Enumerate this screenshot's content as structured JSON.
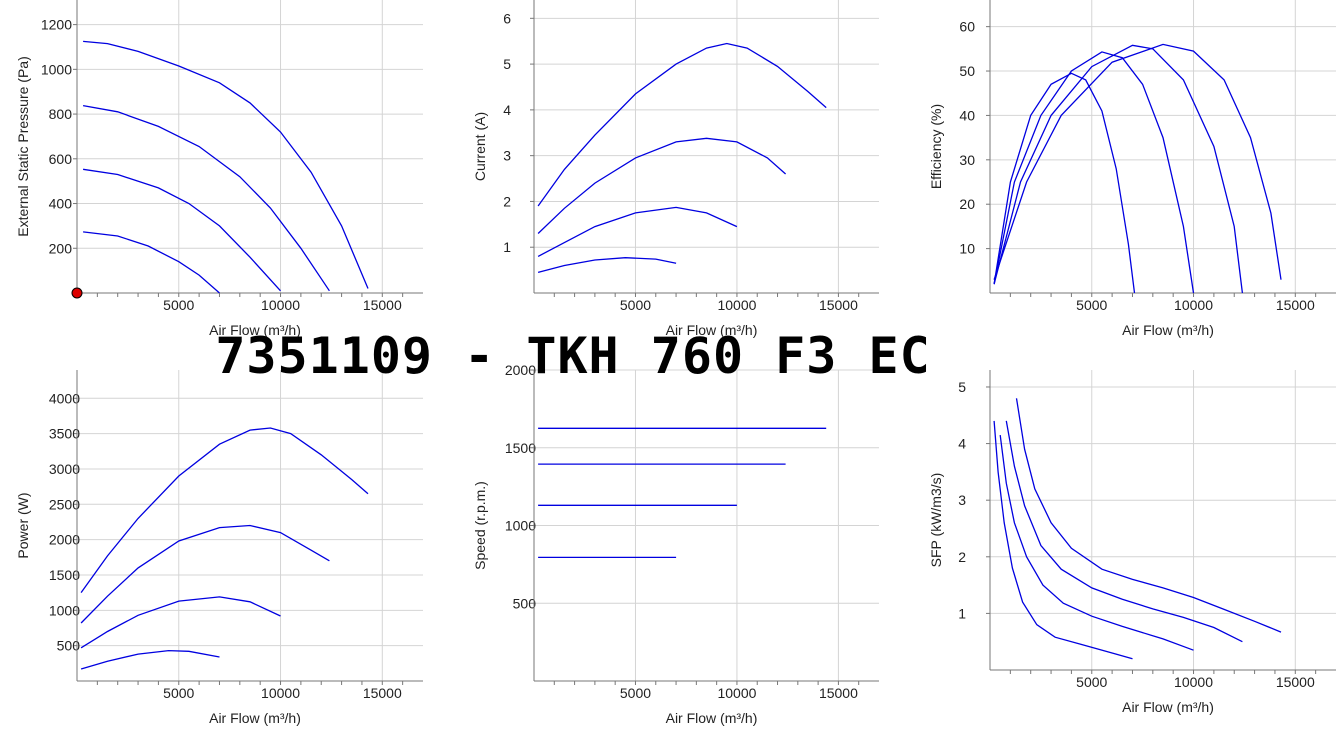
{
  "title": "7351109 - TKH 760 F3 EC",
  "colors": {
    "curve": "#0000e0",
    "grid": "#d4d4d4",
    "marker": "#dd0000"
  },
  "chart_data": [
    {
      "type": "line",
      "xlabel": "Air Flow (m³/h)",
      "ylabel": "External Static Pressure (Pa)",
      "xlim": [
        0,
        17000
      ],
      "ylim": [
        0,
        1310
      ],
      "xticks": [
        5000,
        10000,
        15000
      ],
      "yticks": [
        200,
        400,
        600,
        800,
        1000,
        1200
      ],
      "marker_point": {
        "x": 0,
        "y": 0
      },
      "series": [
        {
          "points": [
            [
              300,
              1125
            ],
            [
              1500,
              1115
            ],
            [
              3000,
              1080
            ],
            [
              5000,
              1015
            ],
            [
              7000,
              940
            ],
            [
              8500,
              850
            ],
            [
              10000,
              720
            ],
            [
              11500,
              540
            ],
            [
              13000,
              300
            ],
            [
              14300,
              20
            ]
          ]
        },
        {
          "points": [
            [
              300,
              838
            ],
            [
              2000,
              810
            ],
            [
              4000,
              745
            ],
            [
              6000,
              655
            ],
            [
              8000,
              520
            ],
            [
              9500,
              380
            ],
            [
              11000,
              200
            ],
            [
              12400,
              10
            ]
          ]
        },
        {
          "points": [
            [
              300,
              553
            ],
            [
              2000,
              530
            ],
            [
              4000,
              470
            ],
            [
              5500,
              400
            ],
            [
              7000,
              300
            ],
            [
              8500,
              160
            ],
            [
              10000,
              10
            ]
          ]
        },
        {
          "points": [
            [
              300,
              273
            ],
            [
              2000,
              255
            ],
            [
              3500,
              210
            ],
            [
              5000,
              140
            ],
            [
              6000,
              80
            ],
            [
              7000,
              0
            ]
          ]
        }
      ]
    },
    {
      "type": "line",
      "xlabel": "Air Flow (m³/h)",
      "ylabel": "Current (A)",
      "xlim": [
        0,
        17000
      ],
      "ylim": [
        0,
        6.4
      ],
      "xticks": [
        5000,
        10000,
        15000
      ],
      "yticks": [
        1,
        2,
        3,
        4,
        5,
        6
      ],
      "series": [
        {
          "points": [
            [
              200,
              1.9
            ],
            [
              1500,
              2.7
            ],
            [
              3000,
              3.45
            ],
            [
              5000,
              4.35
            ],
            [
              7000,
              5.0
            ],
            [
              8500,
              5.35
            ],
            [
              9500,
              5.45
            ],
            [
              10500,
              5.35
            ],
            [
              12000,
              4.95
            ],
            [
              13500,
              4.4
            ],
            [
              14400,
              4.05
            ]
          ]
        },
        {
          "points": [
            [
              200,
              1.3
            ],
            [
              1500,
              1.85
            ],
            [
              3000,
              2.4
            ],
            [
              5000,
              2.95
            ],
            [
              7000,
              3.3
            ],
            [
              8500,
              3.38
            ],
            [
              10000,
              3.3
            ],
            [
              11500,
              2.95
            ],
            [
              12400,
              2.6
            ]
          ]
        },
        {
          "points": [
            [
              200,
              0.8
            ],
            [
              1500,
              1.1
            ],
            [
              3000,
              1.45
            ],
            [
              5000,
              1.75
            ],
            [
              7000,
              1.87
            ],
            [
              8500,
              1.75
            ],
            [
              10000,
              1.45
            ]
          ]
        },
        {
          "points": [
            [
              200,
              0.45
            ],
            [
              1500,
              0.6
            ],
            [
              3000,
              0.72
            ],
            [
              4500,
              0.77
            ],
            [
              6000,
              0.74
            ],
            [
              7000,
              0.65
            ]
          ]
        }
      ]
    },
    {
      "type": "line",
      "xlabel": "Air Flow (m³/h)",
      "ylabel": "Efficiency (%)",
      "xlim": [
        0,
        17000
      ],
      "ylim": [
        0,
        66
      ],
      "xticks": [
        5000,
        10000,
        15000
      ],
      "yticks": [
        10,
        20,
        30,
        40,
        50,
        60
      ],
      "series": [
        {
          "points": [
            [
              200,
              2
            ],
            [
              1000,
              25
            ],
            [
              2000,
              40
            ],
            [
              3000,
              47
            ],
            [
              4000,
              49.5
            ],
            [
              4700,
              48
            ],
            [
              5500,
              41
            ],
            [
              6200,
              28
            ],
            [
              6800,
              11
            ],
            [
              7100,
              0
            ]
          ]
        },
        {
          "points": [
            [
              200,
              2
            ],
            [
              1200,
              25
            ],
            [
              2500,
              40
            ],
            [
              4000,
              50
            ],
            [
              5500,
              54.3
            ],
            [
              6500,
              53
            ],
            [
              7500,
              47
            ],
            [
              8500,
              35
            ],
            [
              9500,
              15
            ],
            [
              10000,
              0
            ]
          ]
        },
        {
          "points": [
            [
              200,
              2
            ],
            [
              1500,
              25
            ],
            [
              3000,
              40
            ],
            [
              5000,
              51
            ],
            [
              7000,
              55.8
            ],
            [
              8000,
              55
            ],
            [
              9500,
              48
            ],
            [
              11000,
              33
            ],
            [
              12000,
              15
            ],
            [
              12400,
              0
            ]
          ]
        },
        {
          "points": [
            [
              200,
              3
            ],
            [
              1800,
              25
            ],
            [
              3500,
              40
            ],
            [
              6000,
              52
            ],
            [
              8500,
              56
            ],
            [
              10000,
              54.5
            ],
            [
              11500,
              48
            ],
            [
              12800,
              35
            ],
            [
              13800,
              18
            ],
            [
              14300,
              3
            ]
          ]
        }
      ]
    },
    {
      "type": "line",
      "xlabel": "Air Flow (m³/h)",
      "ylabel": "Power (W)",
      "xlim": [
        0,
        17000
      ],
      "ylim": [
        0,
        4400
      ],
      "xticks": [
        5000,
        10000,
        15000
      ],
      "yticks": [
        500,
        1000,
        1500,
        2000,
        2500,
        3000,
        3500,
        4000
      ],
      "series": [
        {
          "points": [
            [
              200,
              1250
            ],
            [
              1500,
              1770
            ],
            [
              3000,
              2300
            ],
            [
              5000,
              2900
            ],
            [
              7000,
              3350
            ],
            [
              8500,
              3550
            ],
            [
              9500,
              3580
            ],
            [
              10500,
              3500
            ],
            [
              12000,
              3200
            ],
            [
              13500,
              2850
            ],
            [
              14300,
              2650
            ]
          ]
        },
        {
          "points": [
            [
              200,
              820
            ],
            [
              1500,
              1200
            ],
            [
              3000,
              1600
            ],
            [
              5000,
              1980
            ],
            [
              7000,
              2170
            ],
            [
              8500,
              2200
            ],
            [
              10000,
              2100
            ],
            [
              11500,
              1850
            ],
            [
              12400,
              1700
            ]
          ]
        },
        {
          "points": [
            [
              200,
              470
            ],
            [
              1500,
              700
            ],
            [
              3000,
              930
            ],
            [
              5000,
              1130
            ],
            [
              7000,
              1190
            ],
            [
              8500,
              1120
            ],
            [
              10000,
              920
            ]
          ]
        },
        {
          "points": [
            [
              200,
              170
            ],
            [
              1500,
              280
            ],
            [
              3000,
              380
            ],
            [
              4500,
              430
            ],
            [
              5500,
              420
            ],
            [
              7000,
              340
            ]
          ]
        }
      ]
    },
    {
      "type": "line",
      "xlabel": "Air Flow (m³/h)",
      "ylabel": "Speed (r.p.m.)",
      "xlim": [
        0,
        17000
      ],
      "ylim": [
        0,
        2000
      ],
      "xticks": [
        5000,
        10000,
        15000
      ],
      "yticks": [
        500,
        1000,
        1500,
        2000
      ],
      "series": [
        {
          "points": [
            [
              200,
              1625
            ],
            [
              14400,
              1625
            ]
          ]
        },
        {
          "points": [
            [
              200,
              1395
            ],
            [
              12400,
              1395
            ]
          ]
        },
        {
          "points": [
            [
              200,
              1130
            ],
            [
              10000,
              1130
            ]
          ]
        },
        {
          "points": [
            [
              200,
              795
            ],
            [
              7000,
              795
            ]
          ]
        }
      ]
    },
    {
      "type": "line",
      "xlabel": "Air Flow (m³/h)",
      "ylabel": "SFP (kW/m3/s)",
      "xlim": [
        0,
        17000
      ],
      "ylim": [
        0,
        5.3
      ],
      "xticks": [
        5000,
        10000,
        15000
      ],
      "yticks": [
        1,
        2,
        3,
        4,
        5
      ],
      "series": [
        {
          "points": [
            [
              1300,
              4.8
            ],
            [
              1700,
              3.9
            ],
            [
              2200,
              3.2
            ],
            [
              3000,
              2.6
            ],
            [
              4000,
              2.15
            ],
            [
              5500,
              1.78
            ],
            [
              7000,
              1.6
            ],
            [
              8500,
              1.45
            ],
            [
              10000,
              1.28
            ],
            [
              11500,
              1.07
            ],
            [
              13000,
              0.86
            ],
            [
              14300,
              0.67
            ]
          ]
        },
        {
          "points": [
            [
              800,
              4.4
            ],
            [
              1200,
              3.6
            ],
            [
              1700,
              2.9
            ],
            [
              2500,
              2.2
            ],
            [
              3500,
              1.78
            ],
            [
              5000,
              1.45
            ],
            [
              6500,
              1.25
            ],
            [
              8000,
              1.08
            ],
            [
              9500,
              0.93
            ],
            [
              11000,
              0.75
            ],
            [
              12400,
              0.5
            ]
          ]
        },
        {
          "points": [
            [
              500,
              4.15
            ],
            [
              800,
              3.3
            ],
            [
              1200,
              2.6
            ],
            [
              1800,
              2.0
            ],
            [
              2600,
              1.5
            ],
            [
              3600,
              1.18
            ],
            [
              5000,
              0.95
            ],
            [
              6500,
              0.77
            ],
            [
              8500,
              0.55
            ],
            [
              10000,
              0.35
            ]
          ]
        },
        {
          "points": [
            [
              200,
              4.4
            ],
            [
              400,
              3.5
            ],
            [
              700,
              2.6
            ],
            [
              1100,
              1.8
            ],
            [
              1600,
              1.2
            ],
            [
              2300,
              0.8
            ],
            [
              3200,
              0.58
            ],
            [
              4500,
              0.45
            ],
            [
              6000,
              0.3
            ],
            [
              7000,
              0.2
            ]
          ]
        }
      ]
    }
  ]
}
